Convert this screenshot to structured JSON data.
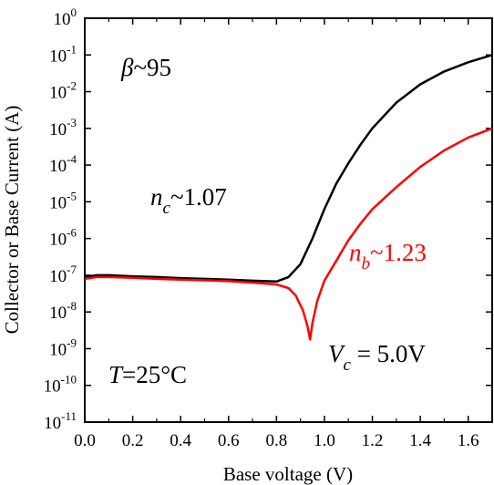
{
  "chart_data": {
    "type": "line",
    "xlabel": "Base voltage (V)",
    "ylabel": "Collector or Base Current (A)",
    "xlim": [
      0.0,
      1.7
    ],
    "ylim_log10": [
      -11,
      0
    ],
    "yscale": "log",
    "grid": false,
    "x_ticks": [
      "0.0",
      "0.2",
      "0.4",
      "0.6",
      "0.8",
      "1.0",
      "1.2",
      "1.4",
      "1.6"
    ],
    "x_tick_values": [
      0.0,
      0.2,
      0.4,
      0.6,
      0.8,
      1.0,
      1.2,
      1.4,
      1.6
    ],
    "y_ticks": [
      {
        "base": "10",
        "exp": "0"
      },
      {
        "base": "10",
        "exp": "-1"
      },
      {
        "base": "10",
        "exp": "-2"
      },
      {
        "base": "10",
        "exp": "-3"
      },
      {
        "base": "10",
        "exp": "-4"
      },
      {
        "base": "10",
        "exp": "-5"
      },
      {
        "base": "10",
        "exp": "-6"
      },
      {
        "base": "10",
        "exp": "-7"
      },
      {
        "base": "10",
        "exp": "-8"
      },
      {
        "base": "10",
        "exp": "-9"
      },
      {
        "base": "10",
        "exp": "-10"
      },
      {
        "base": "10",
        "exp": "-11"
      }
    ],
    "y_tick_values": [
      0,
      -1,
      -2,
      -3,
      -4,
      -5,
      -6,
      -7,
      -8,
      -9,
      -10,
      -11
    ],
    "colors": {
      "collector": "#000000",
      "base": "#ff0000"
    },
    "series": [
      {
        "key": "collector",
        "x": [
          0.0,
          0.05,
          0.1,
          0.2,
          0.3,
          0.4,
          0.5,
          0.6,
          0.7,
          0.8,
          0.85,
          0.9,
          0.95,
          1.0,
          1.05,
          1.1,
          1.15,
          1.2,
          1.3,
          1.4,
          1.5,
          1.6,
          1.7
        ],
        "log10_y": [
          -7.05,
          -7.0,
          -7.0,
          -7.03,
          -7.05,
          -7.08,
          -7.1,
          -7.12,
          -7.15,
          -7.17,
          -7.05,
          -6.7,
          -6.0,
          -5.2,
          -4.5,
          -3.95,
          -3.45,
          -3.0,
          -2.3,
          -1.8,
          -1.45,
          -1.2,
          -1.0
        ]
      },
      {
        "key": "base",
        "x": [
          0.0,
          0.05,
          0.1,
          0.2,
          0.3,
          0.4,
          0.5,
          0.6,
          0.7,
          0.8,
          0.85,
          0.88,
          0.91,
          0.93,
          0.94,
          0.95,
          0.97,
          1.0,
          1.05,
          1.1,
          1.15,
          1.2,
          1.3,
          1.4,
          1.5,
          1.6,
          1.7
        ],
        "log10_y": [
          -7.1,
          -7.05,
          -7.05,
          -7.07,
          -7.1,
          -7.12,
          -7.14,
          -7.16,
          -7.2,
          -7.25,
          -7.35,
          -7.55,
          -7.95,
          -8.4,
          -8.75,
          -8.3,
          -7.7,
          -7.15,
          -6.6,
          -6.05,
          -5.6,
          -5.2,
          -4.6,
          -4.05,
          -3.6,
          -3.25,
          -3.0
        ]
      }
    ],
    "annotations": [
      {
        "key": "beta",
        "symbol": "β",
        "text": "~95"
      },
      {
        "key": "nc",
        "symbol": "n",
        "sub": "c",
        "text": "~1.07"
      },
      {
        "key": "nb",
        "symbol": "n",
        "sub": "b",
        "text": "~1.23"
      },
      {
        "key": "T",
        "symbol": "T",
        "text": "=25°C"
      },
      {
        "key": "Vc",
        "symbol": "V",
        "sub": "c",
        "text": " = 5.0V"
      }
    ]
  }
}
